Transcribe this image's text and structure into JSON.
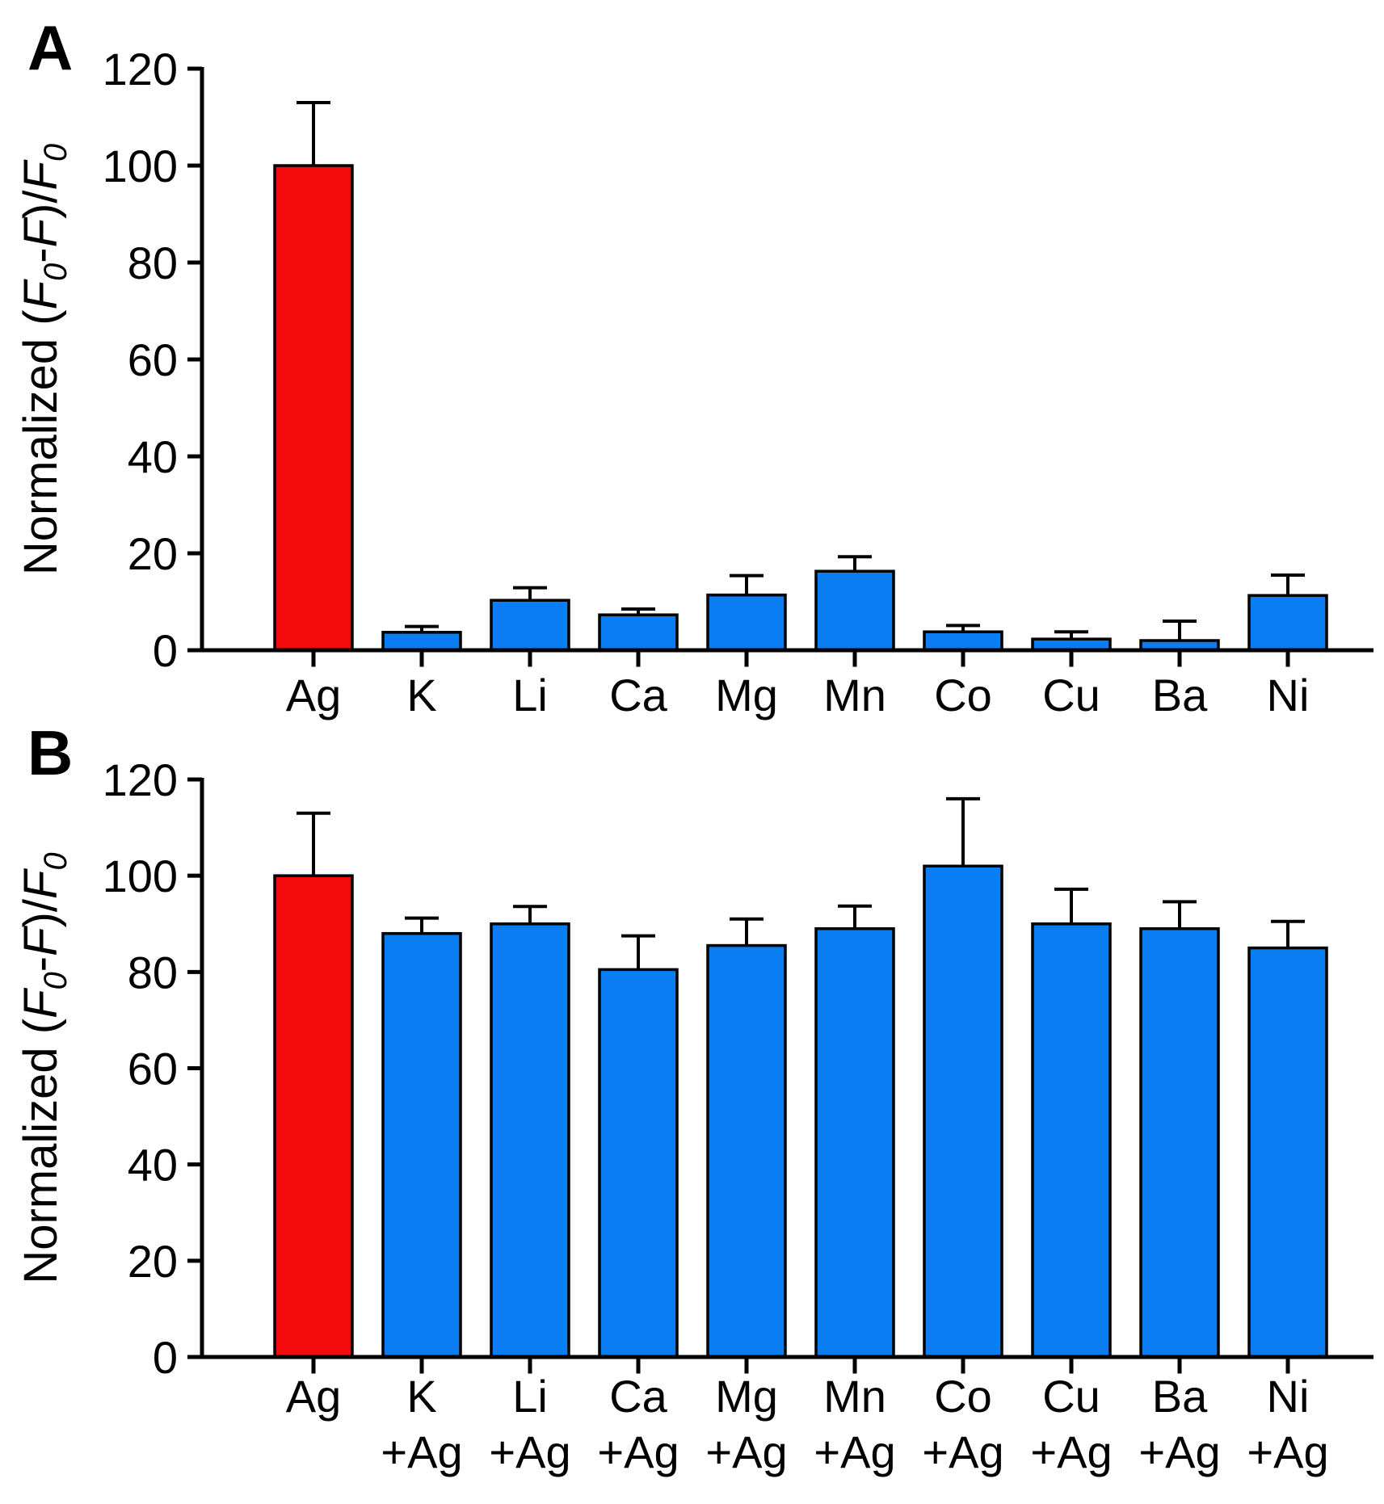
{
  "figure": {
    "description": "Two-panel bar chart, selectivity (A) and competition (B) of Ag detection vs other metal ions",
    "background": "#ffffff"
  },
  "colors": {
    "highlight_bar": "#f30b0b",
    "default_bar": "#0b7df2",
    "bar_outline": "#000000",
    "axis": "#000000",
    "error_bar": "#000000",
    "text": "#000000"
  },
  "chart_data": [
    {
      "type": "bar",
      "panel_letter": "A",
      "title": "",
      "xlabel": "",
      "ylabel_text": "Normalized (F0-F)/F0",
      "ylabel_segments": [
        {
          "text": "Normalized (",
          "italic": false,
          "sub": false
        },
        {
          "text": "F",
          "italic": true,
          "sub": false
        },
        {
          "text": "0",
          "italic": true,
          "sub": true
        },
        {
          "text": "-",
          "italic": false,
          "sub": false
        },
        {
          "text": "F",
          "italic": true,
          "sub": false
        },
        {
          "text": ")/",
          "italic": false,
          "sub": false
        },
        {
          "text": "F",
          "italic": true,
          "sub": false
        },
        {
          "text": "0",
          "italic": true,
          "sub": true
        }
      ],
      "ylim": [
        0,
        120
      ],
      "yticks": [
        0,
        20,
        40,
        60,
        80,
        100,
        120
      ],
      "grid": false,
      "legend": null,
      "categories": [
        "Ag",
        "K",
        "Li",
        "Ca",
        "Mg",
        "Mn",
        "Co",
        "Cu",
        "Ba",
        "Ni"
      ],
      "categories_line2": [
        "",
        "",
        "",
        "",
        "",
        "",
        "",
        "",
        "",
        ""
      ],
      "values": [
        100,
        3.7,
        10.3,
        7.3,
        11.4,
        16.3,
        3.8,
        2.3,
        2.0,
        11.3
      ],
      "errors": [
        13,
        1.2,
        2.6,
        1.2,
        4.0,
        3.0,
        1.3,
        1.5,
        4.0,
        4.2
      ],
      "highlight_index": 0
    },
    {
      "type": "bar",
      "panel_letter": "B",
      "title": "",
      "xlabel": "",
      "ylabel_text": "Normalized (F0-F)/F0",
      "ylabel_segments": [
        {
          "text": "Normalized (",
          "italic": false,
          "sub": false
        },
        {
          "text": "F",
          "italic": true,
          "sub": false
        },
        {
          "text": "0",
          "italic": true,
          "sub": true
        },
        {
          "text": "-",
          "italic": false,
          "sub": false
        },
        {
          "text": "F",
          "italic": true,
          "sub": false
        },
        {
          "text": ")/",
          "italic": false,
          "sub": false
        },
        {
          "text": "F",
          "italic": true,
          "sub": false
        },
        {
          "text": "0",
          "italic": true,
          "sub": true
        }
      ],
      "ylim": [
        0,
        120
      ],
      "yticks": [
        0,
        20,
        40,
        60,
        80,
        100,
        120
      ],
      "grid": false,
      "legend": null,
      "categories": [
        "Ag",
        "K",
        "Li",
        "Ca",
        "Mg",
        "Mn",
        "Co",
        "Cu",
        "Ba",
        "Ni"
      ],
      "categories_line2": [
        "",
        "+Ag",
        "+Ag",
        "+Ag",
        "+Ag",
        "+Ag",
        "+Ag",
        "+Ag",
        "+Ag",
        "+Ag"
      ],
      "values": [
        100,
        88,
        90,
        80.5,
        85.5,
        89,
        102,
        90,
        89,
        85
      ],
      "errors": [
        13,
        3.2,
        3.6,
        7.0,
        5.5,
        4.7,
        14,
        7.2,
        5.6,
        5.5
      ],
      "highlight_index": 0
    }
  ]
}
